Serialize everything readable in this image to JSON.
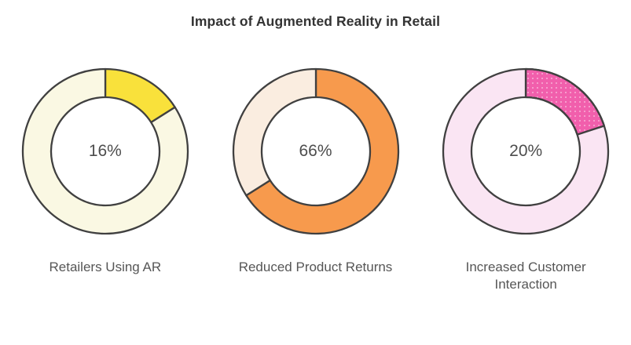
{
  "title": "Impact of Augmented Reality in Retail",
  "style": {
    "background": "#ffffff",
    "stroke_color": "#404040",
    "title_color": "#333333",
    "caption_color": "#565656",
    "percent_color": "#4d4d4d"
  },
  "chart_data": [
    {
      "type": "pie",
      "subtype": "donut",
      "title": "Retailers Using AR",
      "center_label": "16%",
      "value_pct": 16,
      "slices": [
        {
          "name": "Retailers Using AR",
          "value": 16,
          "color": "#F9E13B"
        },
        {
          "name": "remainder",
          "value": 84,
          "color": "#FAF8E3"
        }
      ]
    },
    {
      "type": "pie",
      "subtype": "donut",
      "title": "Reduced Product Returns",
      "center_label": "66%",
      "value_pct": 66,
      "slices": [
        {
          "name": "Reduced Product Returns",
          "value": 66,
          "color": "#F79A4D"
        },
        {
          "name": "remainder",
          "value": 34,
          "color": "#FAEDE0"
        }
      ]
    },
    {
      "type": "pie",
      "subtype": "donut",
      "title": "Increased Customer Interaction",
      "center_label": "20%",
      "value_pct": 20,
      "slices": [
        {
          "name": "Increased Customer Interaction",
          "value": 20,
          "color": "#F15FAC",
          "texture": "dots"
        },
        {
          "name": "remainder",
          "value": 80,
          "color": "#FAE5F3"
        }
      ]
    }
  ]
}
